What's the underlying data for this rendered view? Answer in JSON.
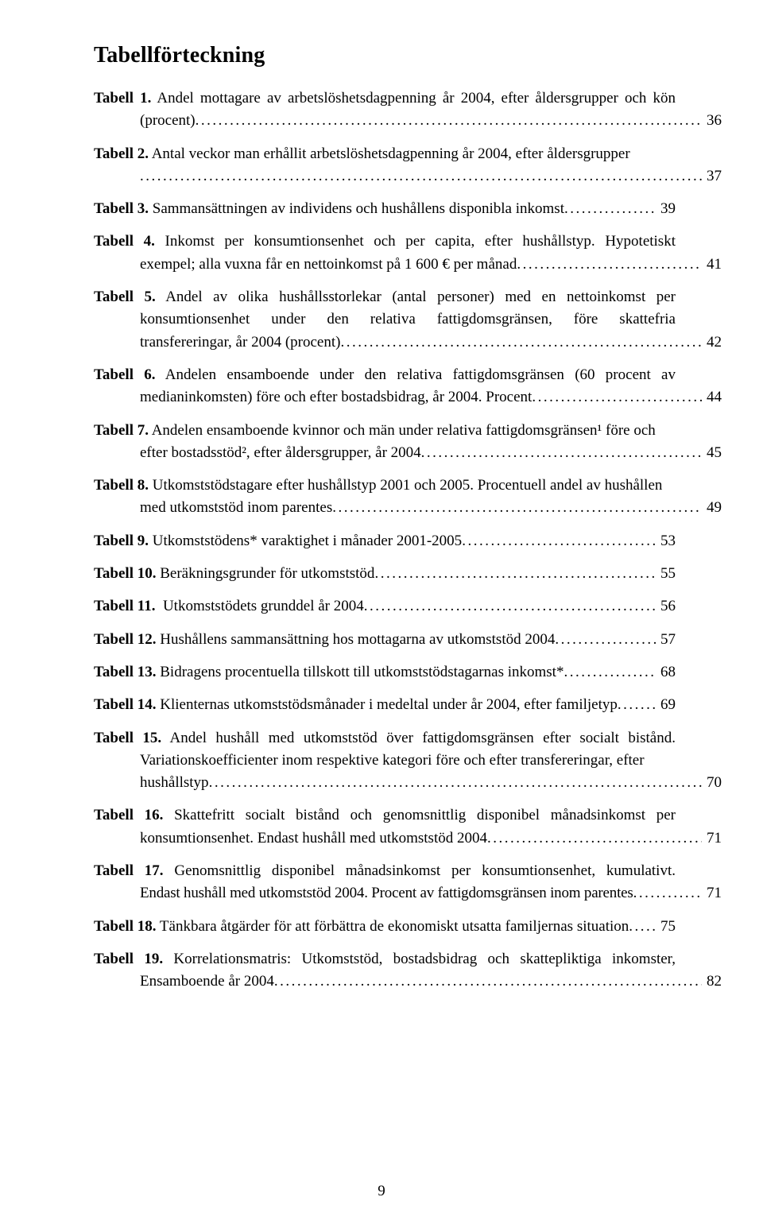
{
  "title": "Tabellförteckning",
  "footer_page": "9",
  "entries": [
    {
      "label": "Tabell 1.",
      "lines": [
        "Andel mottagare av arbetslöshetsdagpenning år 2004, efter åldersgrupper och kön"
      ],
      "last": "(procent)",
      "page": "36",
      "first_justify": true
    },
    {
      "label": "Tabell 2.",
      "lines": [
        "Antal veckor man erhållit arbetslöshetsdagpenning år 2004, efter åldersgrupper"
      ],
      "last": "",
      "page": "37",
      "nowrap_first": true
    },
    {
      "label": "Tabell 3.",
      "lines": [],
      "last": "Sammansättningen av individens och hushållens disponibla inkomst",
      "page": "39"
    },
    {
      "label": "Tabell 4.",
      "lines": [
        "Inkomst per konsumtionsenhet och per capita, efter hushållstyp. Hypotetiskt"
      ],
      "last": "exempel; alla vuxna får en nettoinkomst på 1 600 € per månad",
      "page": "41",
      "first_justify": true
    },
    {
      "label": "Tabell 5.",
      "lines": [
        "Andel av olika hushållsstorlekar (antal personer) med en nettoinkomst per",
        "konsumtionsenhet under den relativa fattigdomsgränsen, före skattefria"
      ],
      "last": "transfereringar, år 2004 (procent)",
      "page": "42",
      "first_justify": true,
      "cont_justify": true
    },
    {
      "label": "Tabell 6.",
      "lines": [
        "Andelen ensamboende under den relativa fattigdomsgränsen (60 procent av"
      ],
      "last": "medianinkomsten) före och efter bostadsbidrag, år 2004. Procent",
      "page": "44",
      "first_justify": true
    },
    {
      "label": "Tabell 7.",
      "lines": [
        "Andelen ensamboende kvinnor och män under relativa fattigdomsgränsen¹ före och"
      ],
      "last": "efter bostadsstöd², efter åldersgrupper, år 2004",
      "page": "45",
      "nowrap_first": true
    },
    {
      "label": "Tabell 8.",
      "lines": [
        "Utkomststödstagare efter hushållstyp 2001 och 2005. Procentuell andel av hushållen"
      ],
      "last": "med utkomststöd inom parentes",
      "page": "49",
      "nowrap_first": true
    },
    {
      "label": "Tabell 9.",
      "lines": [],
      "last": "Utkomststödens* varaktighet i månader 2001-2005",
      "page": "53"
    },
    {
      "label": "Tabell 10.",
      "lines": [],
      "last": "Beräkningsgrunder för utkomststöd",
      "page": "55"
    },
    {
      "label": "Tabell 11.",
      "lines": [],
      "last": " Utkomststödets grunddel år 2004",
      "page": "56"
    },
    {
      "label": "Tabell 12.",
      "lines": [],
      "last": "Hushållens sammansättning hos mottagarna av utkomststöd 2004",
      "page": "57"
    },
    {
      "label": "Tabell 13.",
      "lines": [],
      "last": "Bidragens procentuella tillskott till utkomststödstagarnas inkomst*",
      "page": "68"
    },
    {
      "label": "Tabell 14.",
      "lines": [],
      "last": "Klienternas utkomststödsmånader i medeltal under år 2004, efter familjetyp",
      "page": "69"
    },
    {
      "label": "Tabell 15.",
      "lines": [
        "Andel hushåll med utkomststöd över fattigdomsgränsen efter socialt bistånd.",
        "Variationskoefficienter inom respektive kategori före och efter transfereringar, efter"
      ],
      "last": "hushållstyp",
      "page": "70",
      "first_justify": true
    },
    {
      "label": "Tabell 16.",
      "lines": [
        "Skattefritt socialt bistånd och genomsnittlig disponibel månadsinkomst per"
      ],
      "last": "konsumtionsenhet. Endast hushåll med utkomststöd 2004",
      "page": "71",
      "first_justify": true
    },
    {
      "label": "Tabell 17.",
      "lines": [
        "Genomsnittlig disponibel månadsinkomst per konsumtionsenhet, kumulativt."
      ],
      "last": "Endast hushåll med utkomststöd 2004. Procent av fattigdomsgränsen inom parentes",
      "page": "71",
      "first_justify": true,
      "nowrap_last": true
    },
    {
      "label": "Tabell 18.",
      "lines": [],
      "last": "Tänkbara åtgärder för att förbättra de ekonomiskt utsatta familjernas situation",
      "page": "75"
    },
    {
      "label": "Tabell 19.",
      "lines": [
        "Korrelationsmatris: Utkomststöd, bostadsbidrag och skattepliktiga inkomster,"
      ],
      "last": "Ensamboende år 2004",
      "page": "82",
      "first_justify": true
    }
  ]
}
